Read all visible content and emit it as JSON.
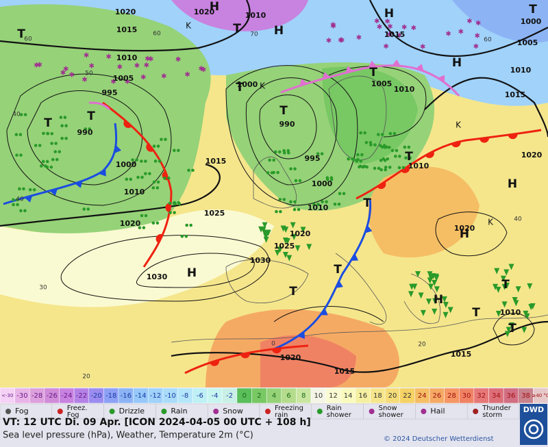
{
  "map": {
    "pressure_labels": [
      "1020",
      "1020",
      "1010",
      "1015",
      "1010",
      "1005",
      "995",
      "990",
      "1000",
      "1010",
      "1020",
      "1025",
      "1030",
      "1030",
      "1025",
      "1020",
      "1015",
      "1010",
      "1000",
      "995",
      "990",
      "1000",
      "1005",
      "1010",
      "1015",
      "1010",
      "1020",
      "1015",
      "1010",
      "1005",
      "1000",
      "1010",
      "1015",
      "1015",
      "1020",
      "1020"
    ],
    "pressure_centers": [
      "H",
      "H",
      "H",
      "H",
      "H",
      "H",
      "H",
      "H",
      "T",
      "T",
      "T",
      "T",
      "T",
      "T",
      "T",
      "T",
      "T",
      "T",
      "T",
      "T",
      "T",
      "T",
      "T",
      "K",
      "K",
      "K",
      "K"
    ],
    "temperature_labels": [
      "60",
      "60",
      "70",
      "60",
      "50",
      "40",
      "40",
      "30",
      "20",
      "40",
      "20",
      "0"
    ]
  },
  "scale": {
    "labels": [
      "<-30",
      "-30",
      "-28",
      "-26",
      "-24",
      "-22",
      "-20",
      "-18",
      "-16",
      "-14",
      "-12",
      "-10",
      "-8",
      "-6",
      "-4",
      "-2",
      "0",
      "2",
      "4",
      "6",
      "8",
      "10",
      "12",
      "14",
      "16",
      "18",
      "20",
      "22",
      "24",
      "26",
      "28",
      "30",
      "32",
      "34",
      "36",
      "38",
      "≥40 °C"
    ],
    "colors": [
      "#f5d2f5",
      "#e8b4e8",
      "#dca0dc",
      "#d08cd8",
      "#c882e0",
      "#b482e6",
      "#9c8cf0",
      "#8ca0f5",
      "#8cb4f5",
      "#96c8fa",
      "#a0d2fa",
      "#aadcfa",
      "#b4e6fa",
      "#bef0f5",
      "#c8f5f0",
      "#c8f0e6",
      "#5abe5a",
      "#78c864",
      "#96d278",
      "#b4dc8c",
      "#c8e6a0",
      "#f5f5e6",
      "#fafad2",
      "#fafabe",
      "#f5f0a0",
      "#f5e68c",
      "#f5dc78",
      "#f5d264",
      "#f5be64",
      "#f5aa64",
      "#f59664",
      "#f08264",
      "#e67878",
      "#dc6e78",
      "#d26e82",
      "#c8828c",
      "#e6c8c8"
    ]
  },
  "legend": [
    "Fog",
    "Freez. Fog",
    "Drizzle",
    "Rain",
    "Snow",
    "Freezing rain",
    "Rain shower",
    "Snow shower",
    "Hail",
    "Thunder storm"
  ],
  "footer": {
    "valid_time": "VT: 12 UTC Di.  09 Apr. [ICON 2024-04-05  00 UTC + 108 h]",
    "description": "Sea level pressure (hPa), Weather, Temperature 2m (°C)",
    "copyright": "© 2024 Deutscher Wetterdienst",
    "logo": "DWD"
  }
}
